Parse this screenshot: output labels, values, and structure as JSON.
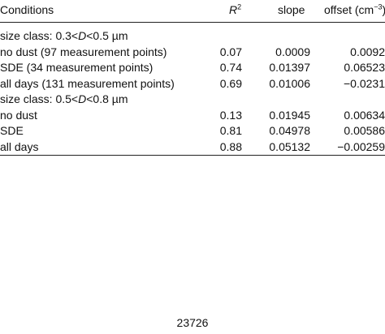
{
  "table": {
    "header": {
      "conditions": "Conditions",
      "r2": "R",
      "r2_sup": "2",
      "slope": "slope",
      "offset": "offset (cm",
      "offset_sup": "−3",
      "offset_close": ")"
    },
    "groups": [
      {
        "label_prefix": "size class: 0.3<",
        "label_var": "D",
        "label_mid": "<0.5 ",
        "label_unit": "µm",
        "rows": [
          [
            "no dust (97 measurement points)",
            "0.07",
            "0.0009",
            "0.0092"
          ],
          [
            "SDE (34 measurement points)",
            "0.74",
            "0.01397",
            "0.06523"
          ],
          [
            "all days (131 measurement points)",
            "0.69",
            "0.01006",
            "−0.0231"
          ]
        ]
      },
      {
        "label_prefix": "size class: 0.5<",
        "label_var": "D",
        "label_mid": "<0.8 ",
        "label_unit": "µm",
        "rows": [
          [
            "no dust",
            "0.13",
            "0.01945",
            "0.00634"
          ],
          [
            "SDE",
            "0.81",
            "0.04978",
            "0.00586"
          ],
          [
            "all days",
            "0.88",
            "0.05132",
            "−0.00259"
          ]
        ]
      }
    ]
  },
  "footer": {
    "page_number": "23726"
  }
}
